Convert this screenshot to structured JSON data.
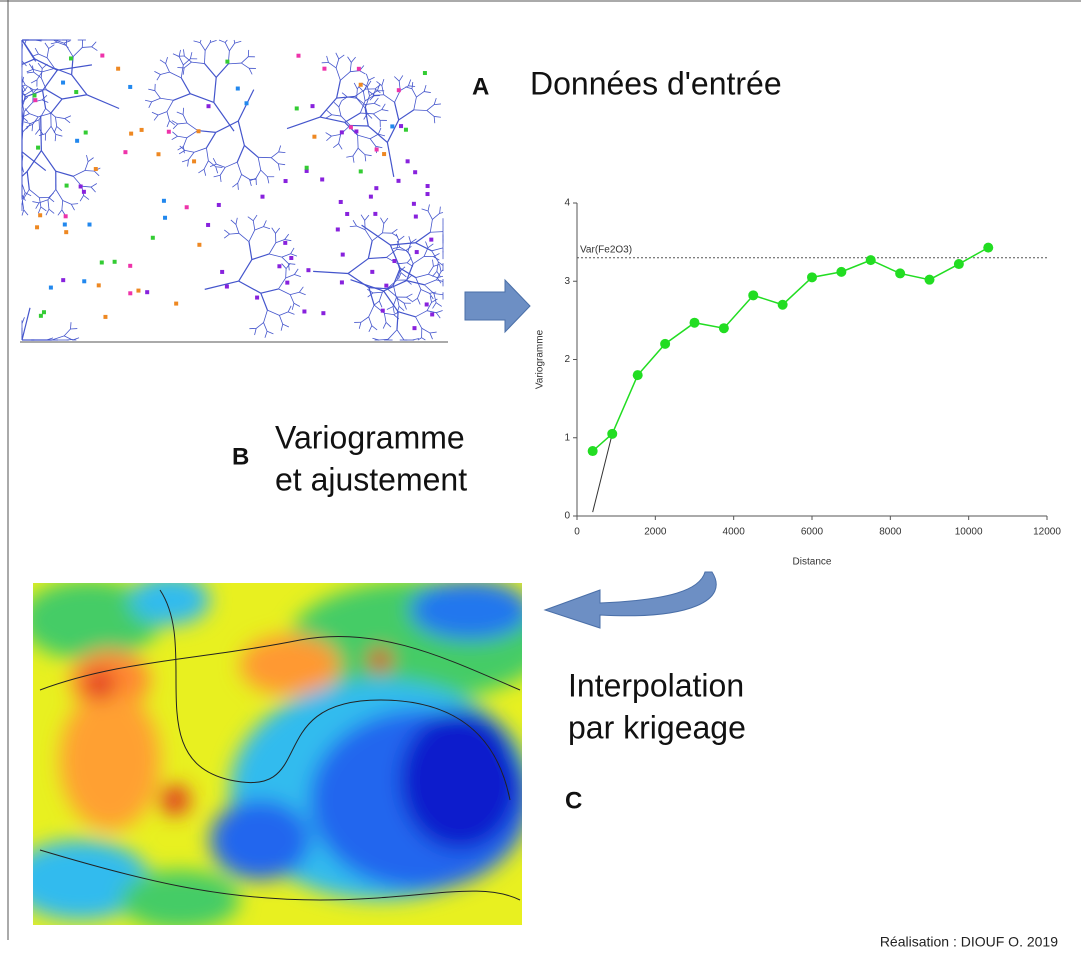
{
  "panel_a": {
    "letter": "A",
    "title": "Données d'entrée"
  },
  "panel_b": {
    "letter": "B",
    "title_line1": "Variogramme",
    "title_line2": "et ajustement"
  },
  "panel_c": {
    "letter": "C",
    "title_line1": "Interpolation",
    "title_line2": "par krigeage"
  },
  "credit": "Réalisation : DIOUF O. 2019",
  "chart_data": {
    "type": "line",
    "x_label": "Distance",
    "y_label": "Variogramme",
    "x": [
      400,
      900,
      1550,
      2250,
      3000,
      3750,
      4500,
      5250,
      6000,
      6750,
      7500,
      8250,
      9000,
      9750,
      10500
    ],
    "values": [
      0.83,
      1.05,
      1.8,
      2.2,
      2.47,
      2.4,
      2.82,
      2.7,
      3.05,
      3.12,
      3.27,
      3.1,
      3.02,
      3.22,
      3.43
    ],
    "color": "#22dd22",
    "fit": {
      "x": [
        400,
        900
      ],
      "y": [
        0.05,
        1.05
      ],
      "color": "#333333"
    },
    "sill": {
      "value": 3.3,
      "label": "Var(Fe2O3)"
    },
    "xlim": [
      0,
      12000
    ],
    "xticks": [
      0,
      2000,
      4000,
      6000,
      8000,
      10000,
      12000
    ],
    "ylim": [
      0,
      4
    ],
    "yticks": [
      0,
      1,
      2,
      3,
      4
    ]
  }
}
